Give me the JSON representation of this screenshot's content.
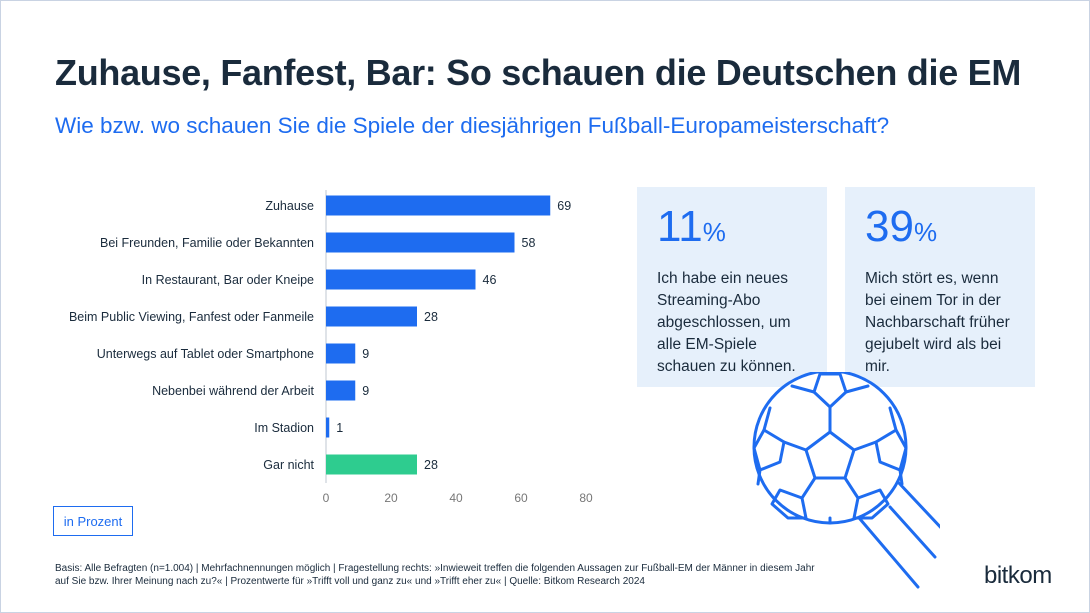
{
  "title": "Zuhause, Fanfest, Bar: So schauen die Deutschen die EM",
  "subtitle": "Wie bzw. wo schauen Sie die Spiele der diesjährigen Fußball-Europameisterschaft?",
  "unit_label": "in Prozent",
  "colors": {
    "primary": "#1e6cf0",
    "accent": "#2ecc8f",
    "text": "#1a2b3c",
    "card_bg": "#e6f0fb"
  },
  "chart_data": {
    "type": "bar",
    "orientation": "horizontal",
    "categories": [
      "Zuhause",
      "Bei Freunden, Familie oder Bekannten",
      "In Restaurant, Bar oder Kneipe",
      "Beim Public Viewing, Fanfest oder Fanmeile",
      "Unterwegs auf Tablet oder Smartphone",
      "Nebenbei während der Arbeit",
      "Im Stadion",
      "Gar nicht"
    ],
    "values": [
      69,
      58,
      46,
      28,
      9,
      9,
      1,
      28
    ],
    "bar_colors": [
      "#1e6cf0",
      "#1e6cf0",
      "#1e6cf0",
      "#1e6cf0",
      "#1e6cf0",
      "#1e6cf0",
      "#1e6cf0",
      "#2ecc8f"
    ],
    "xlim": [
      0,
      80
    ],
    "xticks": [
      0,
      20,
      40,
      60,
      80
    ],
    "grid": false
  },
  "stats": [
    {
      "value": "11",
      "unit": "%",
      "text": "Ich habe ein neues Streaming-Abo abgeschlossen, um alle EM-Spiele schauen zu können."
    },
    {
      "value": "39",
      "unit": "%",
      "text": "Mich stört es, wenn bei einem Tor in der Nachbarschaft früher gejubelt wird als bei mir."
    }
  ],
  "illustration": "soccer-ball-icon",
  "footnote": "Basis: Alle Befragten (n=1.004) | Mehrfachnennungen möglich | Fragestellung rechts: »Inwieweit treffen die folgenden Aussagen zur Fußball-EM der Männer in diesem Jahr auf Sie bzw. Ihrer Meinung nach zu?« | Prozentwerte für »Trifft voll und ganz zu« und »Trifft eher zu« | Quelle: Bitkom Research 2024",
  "logo": "bitkom"
}
